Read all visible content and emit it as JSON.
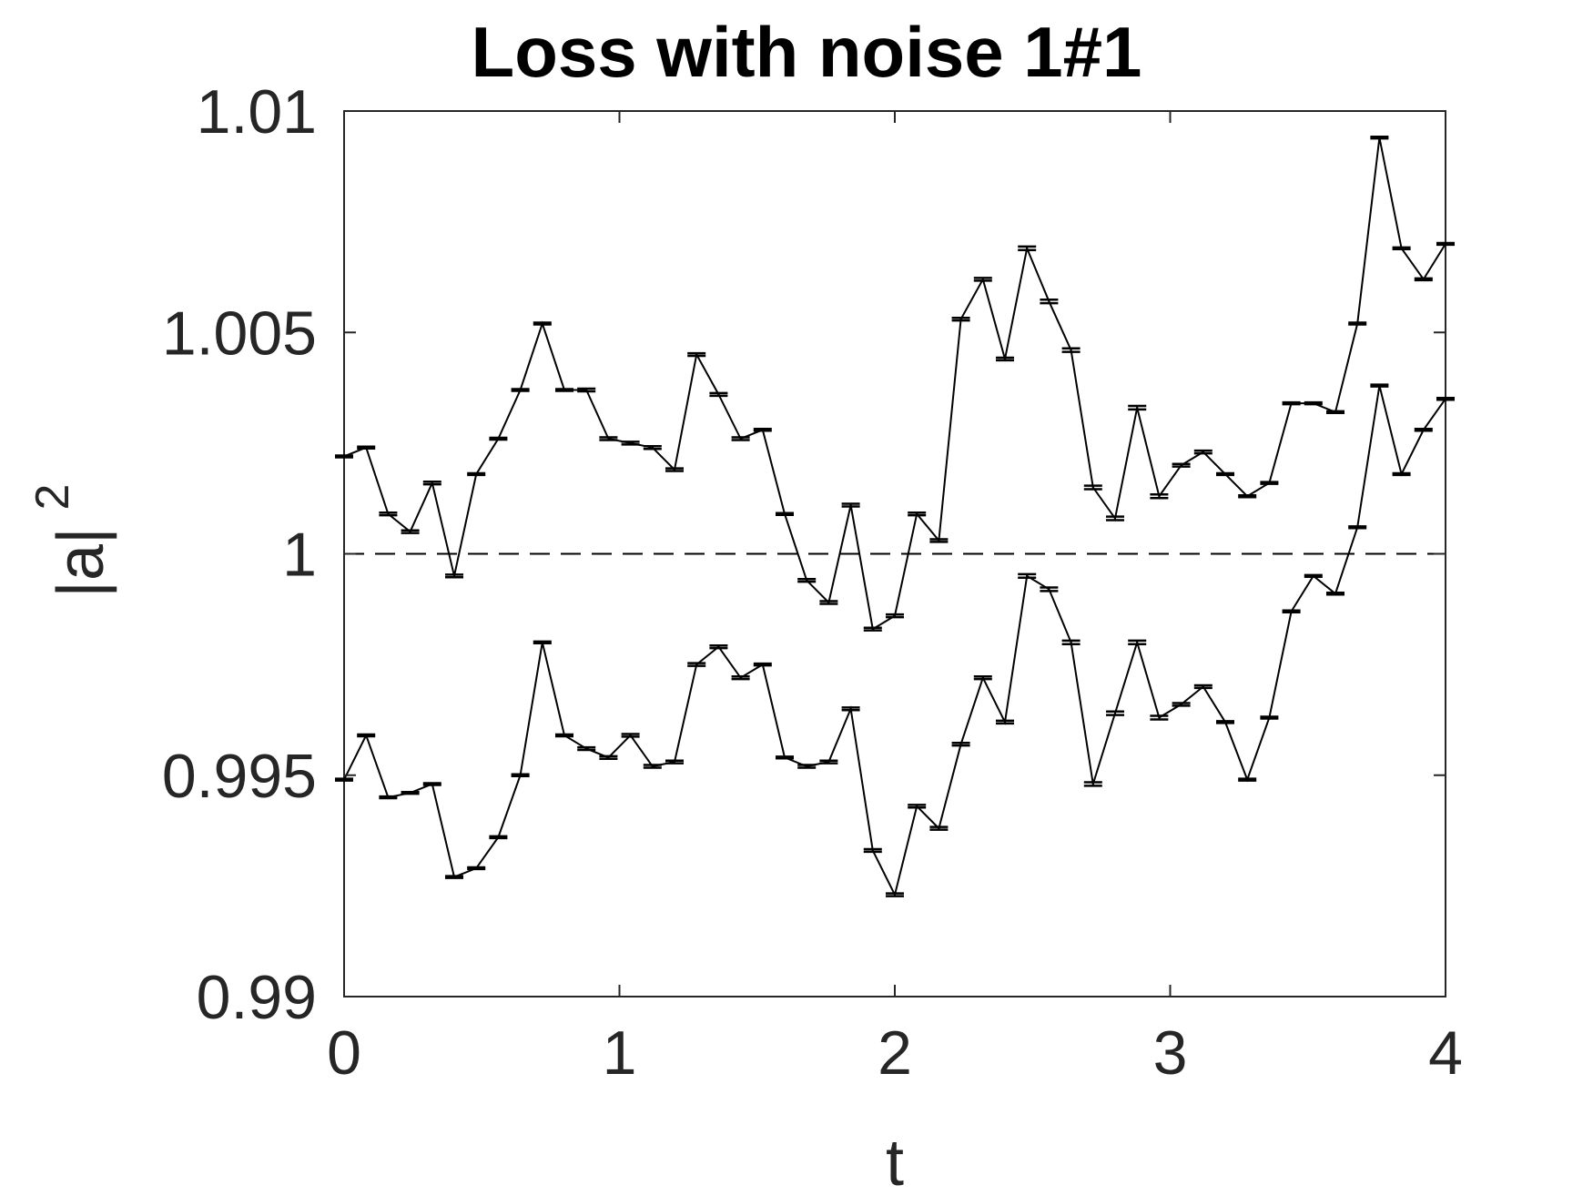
{
  "chart_data": {
    "type": "line",
    "title": "Loss with noise 1#1",
    "xlabel": "t",
    "ylabel": "|a|",
    "ylabel_superscript": "2",
    "xlim": [
      0,
      4
    ],
    "ylim": [
      0.99,
      1.01
    ],
    "xticks": [
      0,
      1,
      2,
      3,
      4
    ],
    "xtick_labels": [
      "0",
      "1",
      "2",
      "3",
      "4"
    ],
    "yticks": [
      0.99,
      0.995,
      1,
      1.005,
      1.01
    ],
    "ytick_labels": [
      "0.99",
      "0.995",
      "1",
      "1.005",
      "1.01"
    ],
    "grid": false,
    "legend": "none",
    "reference_line": {
      "y": 1,
      "style": "dashed"
    },
    "line_color": "#000000",
    "x": [
      0,
      0.08,
      0.16,
      0.24,
      0.32,
      0.4,
      0.48,
      0.56,
      0.64,
      0.72,
      0.8,
      0.88,
      0.96,
      1.04,
      1.12,
      1.2,
      1.28,
      1.36,
      1.44,
      1.52,
      1.6,
      1.68,
      1.76,
      1.84,
      1.92,
      2.0,
      2.08,
      2.16,
      2.24,
      2.32,
      2.4,
      2.48,
      2.56,
      2.64,
      2.72,
      2.8,
      2.88,
      2.96,
      3.04,
      3.12,
      3.2,
      3.28,
      3.36,
      3.44,
      3.52,
      3.6,
      3.68,
      3.76,
      3.84,
      3.92,
      4.0
    ],
    "series": [
      {
        "values": [
          1.0022,
          1.0024,
          1.0009,
          1.0005,
          1.0016,
          0.9995,
          1.0018,
          1.0026,
          1.0037,
          1.0052,
          1.0037,
          1.0037,
          1.0026,
          1.0025,
          1.0024,
          1.0019,
          1.0045,
          1.0036,
          1.0026,
          1.0028,
          1.0009,
          0.9994,
          0.9989,
          1.0011,
          0.9983,
          0.9986,
          1.0009,
          1.0003,
          1.0053,
          1.0062,
          1.0044,
          1.0069,
          1.0057,
          1.0046,
          1.0015,
          1.0008,
          1.0033,
          1.0013,
          1.002,
          1.0023,
          1.0018,
          1.0013,
          1.0016,
          1.0034,
          1.0034,
          1.0032,
          1.0052,
          1.0094,
          1.0069,
          1.0062,
          1.007
        ],
        "errors": [
          2e-05,
          2e-05,
          3e-05,
          3e-05,
          3e-05,
          3e-05,
          2e-05,
          2e-05,
          2e-05,
          2e-05,
          2e-05,
          3e-05,
          3e-05,
          3e-05,
          3e-05,
          3e-05,
          3e-05,
          3e-05,
          3e-05,
          2e-05,
          2e-05,
          3e-05,
          3e-05,
          3e-05,
          3e-05,
          3e-05,
          3e-05,
          3e-05,
          3e-05,
          3e-05,
          3e-05,
          4e-05,
          4e-05,
          4e-05,
          4e-05,
          4e-05,
          4e-05,
          4e-05,
          3e-05,
          3e-05,
          2e-05,
          2e-05,
          2e-05,
          2e-05,
          2e-05,
          2e-05,
          2e-05,
          2e-05,
          2e-05,
          2e-05,
          2e-05
        ]
      },
      {
        "values": [
          0.9949,
          0.9959,
          0.9945,
          0.9946,
          0.9948,
          0.9927,
          0.9929,
          0.9936,
          0.995,
          0.998,
          0.9959,
          0.9956,
          0.9954,
          0.9959,
          0.9952,
          0.9953,
          0.9975,
          0.9979,
          0.9972,
          0.9975,
          0.9954,
          0.9952,
          0.9953,
          0.9965,
          0.9933,
          0.9923,
          0.9943,
          0.9938,
          0.9957,
          0.9972,
          0.9962,
          0.9995,
          0.9992,
          0.998,
          0.9948,
          0.9964,
          0.998,
          0.9963,
          0.9966,
          0.997,
          0.9962,
          0.9949,
          0.9963,
          0.9987,
          0.9995,
          0.9991,
          1.0006,
          1.0038,
          1.0018,
          1.0028,
          1.0035
        ],
        "errors": [
          2e-05,
          2e-05,
          2e-05,
          2e-05,
          2e-05,
          2e-05,
          2e-05,
          2e-05,
          2e-05,
          2e-05,
          2e-05,
          3e-05,
          3e-05,
          3e-05,
          3e-05,
          3e-05,
          3e-05,
          3e-05,
          3e-05,
          2e-05,
          2e-05,
          3e-05,
          3e-05,
          3e-05,
          3e-05,
          3e-05,
          3e-05,
          3e-05,
          3e-05,
          3e-05,
          3e-05,
          4e-05,
          4e-05,
          4e-05,
          4e-05,
          4e-05,
          4e-05,
          4e-05,
          3e-05,
          3e-05,
          2e-05,
          2e-05,
          2e-05,
          2e-05,
          2e-05,
          2e-05,
          2e-05,
          2e-05,
          2e-05,
          2e-05,
          2e-05
        ]
      }
    ]
  }
}
